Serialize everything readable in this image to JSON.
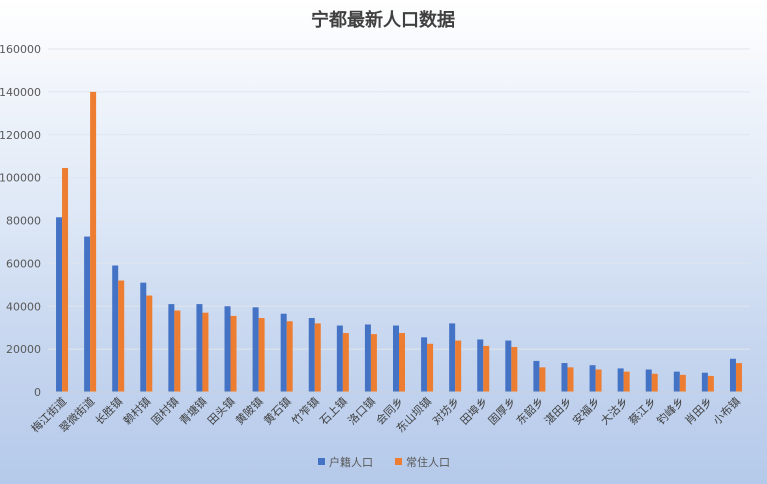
{
  "chart_data": {
    "type": "bar",
    "title": "宁都最新人口数据",
    "xlabel": "",
    "ylabel": "",
    "ylim": [
      0,
      160000
    ],
    "yticks": [
      0,
      20000,
      40000,
      60000,
      80000,
      100000,
      120000,
      140000,
      160000
    ],
    "grid": true,
    "legend_position": "bottom",
    "categories": [
      "梅江街道",
      "翠微街道",
      "长胜镇",
      "赖村镇",
      "固村镇",
      "青塘镇",
      "田头镇",
      "黄陂镇",
      "黄石镇",
      "竹笮镇",
      "石上镇",
      "洛口镇",
      "会同乡",
      "东山坝镇",
      "对坊乡",
      "田埠乡",
      "固厚乡",
      "东韶乡",
      "湛田乡",
      "安福乡",
      "大沽乡",
      "蔡江乡",
      "钓峰乡",
      "肖田乡",
      "小布镇"
    ],
    "series": [
      {
        "name": "户籍人口",
        "color": "#4472c4",
        "values": [
          81500,
          72500,
          59000,
          51000,
          41000,
          41000,
          40000,
          39500,
          36500,
          34500,
          31000,
          31500,
          31000,
          25500,
          32000,
          24500,
          24000,
          14500,
          13500,
          12500,
          11000,
          10500,
          9500,
          9000,
          15500
        ]
      },
      {
        "name": "常住人口",
        "color": "#ed7d31",
        "values": [
          104500,
          140000,
          52000,
          45000,
          38000,
          37000,
          35500,
          34500,
          33000,
          32000,
          27500,
          27000,
          27500,
          22500,
          24000,
          21500,
          21000,
          11500,
          11500,
          10500,
          9500,
          8500,
          8000,
          7500,
          13500
        ]
      }
    ]
  }
}
